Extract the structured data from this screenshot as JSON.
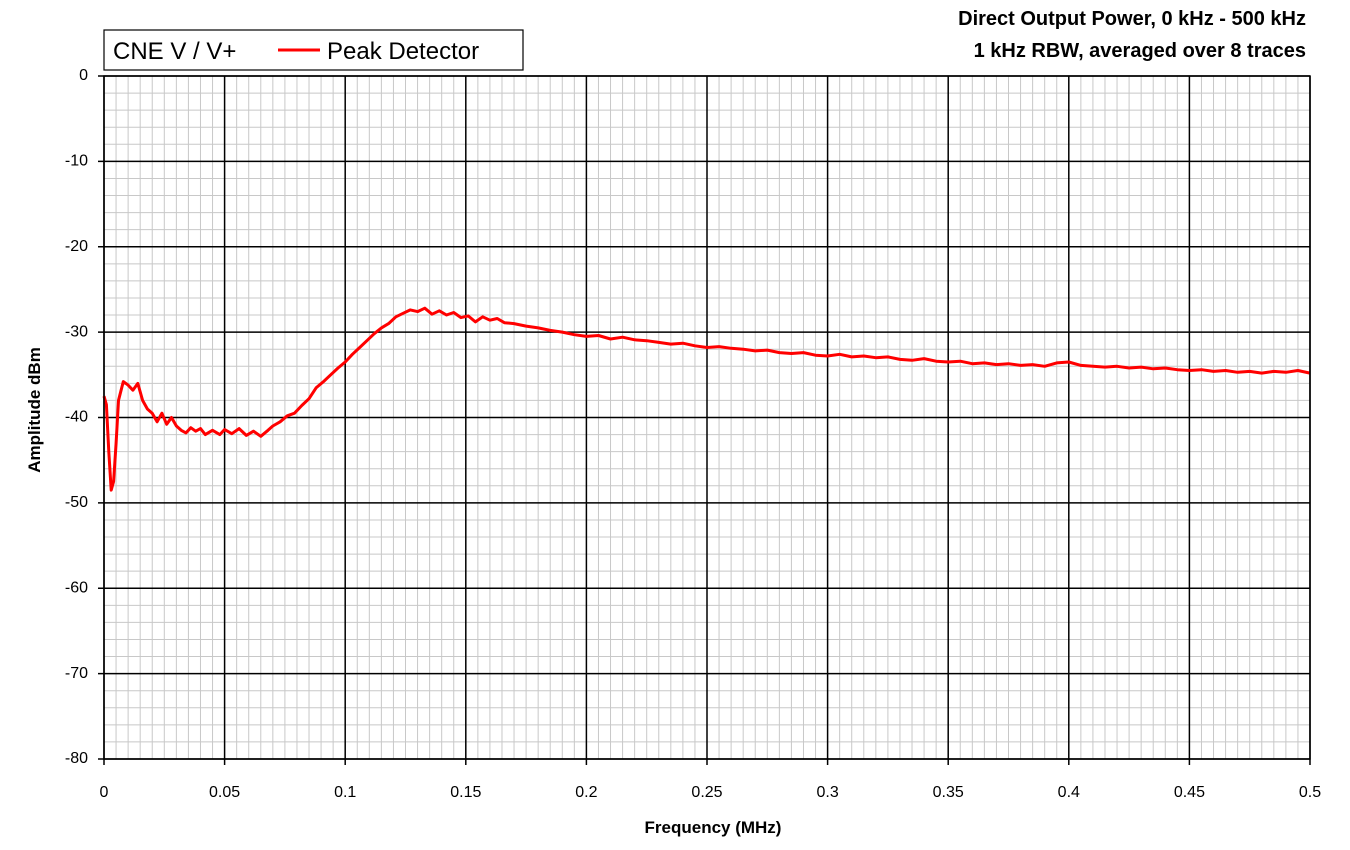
{
  "chart_data": {
    "type": "line",
    "title": [
      "Direct Output Power, 0 kHz - 500 kHz",
      "1 kHz RBW, averaged over 8 traces"
    ],
    "xlabel": "Frequency (MHz)",
    "ylabel": "Amplitude dBm",
    "xlim": [
      0,
      0.5
    ],
    "ylim": [
      -80,
      0
    ],
    "x_ticks": [
      "0",
      "0.05",
      "0.1",
      "0.15",
      "0.2",
      "0.25",
      "0.3",
      "0.35",
      "0.4",
      "0.45",
      "0.5"
    ],
    "y_ticks": [
      "0",
      "-10",
      "-20",
      "-30",
      "-40",
      "-50",
      "-60",
      "-70",
      "-80"
    ],
    "grid": true,
    "legend": {
      "group_label": "CNE V / V+",
      "position": "top-left"
    },
    "series": [
      {
        "name": "Peak Detector",
        "color": "#ff0000",
        "points": [
          [
            0.0,
            -37.5
          ],
          [
            0.001,
            -38.5
          ],
          [
            0.002,
            -44.0
          ],
          [
            0.003,
            -48.5
          ],
          [
            0.004,
            -47.5
          ],
          [
            0.005,
            -43.0
          ],
          [
            0.006,
            -38.0
          ],
          [
            0.008,
            -35.8
          ],
          [
            0.01,
            -36.2
          ],
          [
            0.012,
            -36.8
          ],
          [
            0.014,
            -36.0
          ],
          [
            0.016,
            -38.0
          ],
          [
            0.018,
            -39.0
          ],
          [
            0.02,
            -39.5
          ],
          [
            0.022,
            -40.5
          ],
          [
            0.024,
            -39.5
          ],
          [
            0.026,
            -40.8
          ],
          [
            0.028,
            -40.0
          ],
          [
            0.03,
            -41.0
          ],
          [
            0.032,
            -41.5
          ],
          [
            0.034,
            -41.8
          ],
          [
            0.036,
            -41.2
          ],
          [
            0.038,
            -41.6
          ],
          [
            0.04,
            -41.3
          ],
          [
            0.042,
            -42.0
          ],
          [
            0.045,
            -41.5
          ],
          [
            0.048,
            -42.0
          ],
          [
            0.05,
            -41.4
          ],
          [
            0.053,
            -41.9
          ],
          [
            0.056,
            -41.3
          ],
          [
            0.059,
            -42.1
          ],
          [
            0.062,
            -41.6
          ],
          [
            0.065,
            -42.2
          ],
          [
            0.068,
            -41.5
          ],
          [
            0.07,
            -41.0
          ],
          [
            0.073,
            -40.5
          ],
          [
            0.076,
            -39.8
          ],
          [
            0.079,
            -39.5
          ],
          [
            0.082,
            -38.6
          ],
          [
            0.085,
            -37.8
          ],
          [
            0.088,
            -36.5
          ],
          [
            0.091,
            -35.8
          ],
          [
            0.094,
            -35.0
          ],
          [
            0.097,
            -34.2
          ],
          [
            0.1,
            -33.5
          ],
          [
            0.103,
            -32.6
          ],
          [
            0.106,
            -31.8
          ],
          [
            0.109,
            -31.0
          ],
          [
            0.112,
            -30.2
          ],
          [
            0.115,
            -29.5
          ],
          [
            0.118,
            -29.0
          ],
          [
            0.121,
            -28.2
          ],
          [
            0.124,
            -27.8
          ],
          [
            0.127,
            -27.4
          ],
          [
            0.13,
            -27.6
          ],
          [
            0.133,
            -27.2
          ],
          [
            0.136,
            -27.9
          ],
          [
            0.139,
            -27.5
          ],
          [
            0.142,
            -28.0
          ],
          [
            0.145,
            -27.7
          ],
          [
            0.148,
            -28.3
          ],
          [
            0.151,
            -28.1
          ],
          [
            0.154,
            -28.8
          ],
          [
            0.157,
            -28.2
          ],
          [
            0.16,
            -28.6
          ],
          [
            0.163,
            -28.4
          ],
          [
            0.166,
            -28.9
          ],
          [
            0.17,
            -29.0
          ],
          [
            0.175,
            -29.3
          ],
          [
            0.18,
            -29.5
          ],
          [
            0.185,
            -29.8
          ],
          [
            0.19,
            -30.0
          ],
          [
            0.195,
            -30.3
          ],
          [
            0.2,
            -30.5
          ],
          [
            0.205,
            -30.4
          ],
          [
            0.21,
            -30.8
          ],
          [
            0.215,
            -30.6
          ],
          [
            0.22,
            -30.9
          ],
          [
            0.225,
            -31.0
          ],
          [
            0.23,
            -31.2
          ],
          [
            0.235,
            -31.4
          ],
          [
            0.24,
            -31.3
          ],
          [
            0.245,
            -31.6
          ],
          [
            0.25,
            -31.8
          ],
          [
            0.255,
            -31.7
          ],
          [
            0.26,
            -31.9
          ],
          [
            0.265,
            -32.0
          ],
          [
            0.27,
            -32.2
          ],
          [
            0.275,
            -32.1
          ],
          [
            0.28,
            -32.4
          ],
          [
            0.285,
            -32.5
          ],
          [
            0.29,
            -32.4
          ],
          [
            0.295,
            -32.7
          ],
          [
            0.3,
            -32.8
          ],
          [
            0.305,
            -32.6
          ],
          [
            0.31,
            -32.9
          ],
          [
            0.315,
            -32.8
          ],
          [
            0.32,
            -33.0
          ],
          [
            0.325,
            -32.9
          ],
          [
            0.33,
            -33.2
          ],
          [
            0.335,
            -33.3
          ],
          [
            0.34,
            -33.1
          ],
          [
            0.345,
            -33.4
          ],
          [
            0.35,
            -33.5
          ],
          [
            0.355,
            -33.4
          ],
          [
            0.36,
            -33.7
          ],
          [
            0.365,
            -33.6
          ],
          [
            0.37,
            -33.8
          ],
          [
            0.375,
            -33.7
          ],
          [
            0.38,
            -33.9
          ],
          [
            0.385,
            -33.8
          ],
          [
            0.39,
            -34.0
          ],
          [
            0.395,
            -33.6
          ],
          [
            0.4,
            -33.5
          ],
          [
            0.405,
            -33.9
          ],
          [
            0.41,
            -34.0
          ],
          [
            0.415,
            -34.1
          ],
          [
            0.42,
            -34.0
          ],
          [
            0.425,
            -34.2
          ],
          [
            0.43,
            -34.1
          ],
          [
            0.435,
            -34.3
          ],
          [
            0.44,
            -34.2
          ],
          [
            0.445,
            -34.4
          ],
          [
            0.45,
            -34.5
          ],
          [
            0.455,
            -34.4
          ],
          [
            0.46,
            -34.6
          ],
          [
            0.465,
            -34.5
          ],
          [
            0.47,
            -34.7
          ],
          [
            0.475,
            -34.6
          ],
          [
            0.48,
            -34.8
          ],
          [
            0.485,
            -34.6
          ],
          [
            0.49,
            -34.7
          ],
          [
            0.495,
            -34.5
          ],
          [
            0.5,
            -34.8
          ]
        ]
      }
    ]
  }
}
